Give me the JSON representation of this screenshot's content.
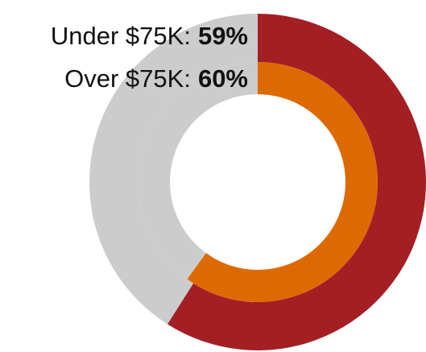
{
  "chart_data": {
    "type": "donut",
    "ylim": [
      0,
      100
    ],
    "track_color": "#cccccc",
    "series": [
      {
        "name": "Under $75K:",
        "color": "#a31f24",
        "values": [
          59
        ],
        "value_labels": [
          "59%"
        ]
      },
      {
        "name": "Over $75K:",
        "color": "#dd6a00",
        "values": [
          60
        ],
        "value_labels": [
          "60%"
        ]
      }
    ]
  }
}
